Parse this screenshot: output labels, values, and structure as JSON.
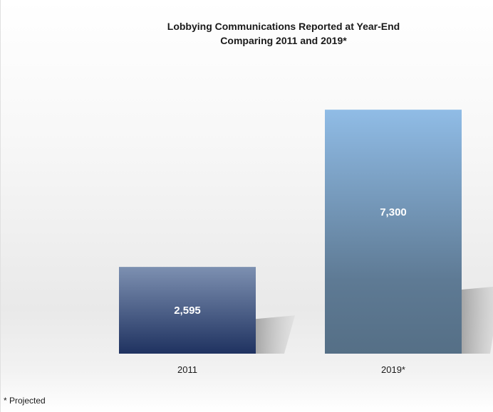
{
  "chart_data": {
    "type": "bar",
    "title": "Lobbying Communications Reported at Year-End",
    "subtitle": "Comparing 2011 and 2019*",
    "categories": [
      "2011",
      "2019*"
    ],
    "values": [
      2595,
      7300
    ],
    "data_labels": [
      "2,595",
      "7,300"
    ],
    "xlabel": "",
    "ylabel": "",
    "ylim": [
      0,
      8900
    ],
    "grid": false,
    "legend": "none",
    "colors": {
      "bar_2011_top": "#7d90b1",
      "bar_2011_bottom": "#1f3260",
      "bar_2019_top": "#90bce6",
      "bar_2019_mid": "#6f8fab",
      "bar_2019_bottom": "#556f86",
      "shadow": "#a8a8a8"
    }
  },
  "footnote": "* Projected"
}
